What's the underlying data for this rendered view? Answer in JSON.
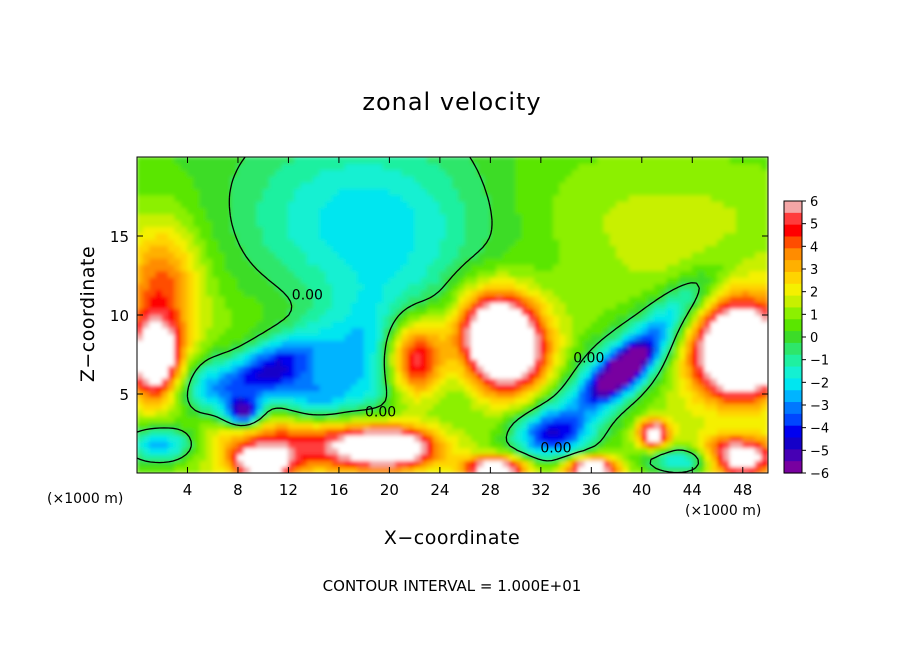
{
  "chart_data": {
    "type": "heatmap",
    "title": "zonal velocity",
    "xlabel": "X−coordinate",
    "ylabel": "Z−coordinate",
    "x_unit": "(×1000 m)",
    "x_ticks": [
      4,
      8,
      12,
      16,
      20,
      24,
      28,
      32,
      36,
      40,
      44,
      48
    ],
    "y_ticks": [
      5,
      10,
      15
    ],
    "xlim": [
      0,
      50
    ],
    "ylim": [
      0,
      20
    ],
    "colorbar": {
      "ticks": [
        "6",
        "5",
        "4",
        "3",
        "2",
        "1",
        "0",
        "−1",
        "−2",
        "−3",
        "−4",
        "−5",
        "−6"
      ],
      "levels": [
        {
          "min": 5.5,
          "color": "#f4a6a6"
        },
        {
          "min": 5,
          "color": "#ff3c3c"
        },
        {
          "min": 4.5,
          "color": "#ff0000"
        },
        {
          "min": 4,
          "color": "#ff4d00"
        },
        {
          "min": 3.5,
          "color": "#ff8c00"
        },
        {
          "min": 3,
          "color": "#ffb000"
        },
        {
          "min": 2.5,
          "color": "#ffd400"
        },
        {
          "min": 2,
          "color": "#f5f000"
        },
        {
          "min": 1.5,
          "color": "#c8f000"
        },
        {
          "min": 1,
          "color": "#8cf000"
        },
        {
          "min": 0.5,
          "color": "#5ae600"
        },
        {
          "min": 0,
          "color": "#3cdc28"
        },
        {
          "min": -0.5,
          "color": "#2ee66a"
        },
        {
          "min": -1,
          "color": "#1ff0a0"
        },
        {
          "min": -1.5,
          "color": "#14f0d2"
        },
        {
          "min": -2,
          "color": "#00e6f0"
        },
        {
          "min": -2.5,
          "color": "#00b4ff"
        },
        {
          "min": -3,
          "color": "#0078ff"
        },
        {
          "min": -3.5,
          "color": "#0046ff"
        },
        {
          "min": -4,
          "color": "#0000f0"
        },
        {
          "min": -4.5,
          "color": "#1400c8"
        },
        {
          "min": -5,
          "color": "#4600b4"
        },
        {
          "min": -99,
          "color": "#7800a0"
        }
      ],
      "saturated_color": "#ffffff"
    },
    "contour_labels": [
      {
        "text": "0.00",
        "x": 13.5,
        "y": 11.3
      },
      {
        "text": "0.00",
        "x": 19.3,
        "y": 3.9
      },
      {
        "text": "0.00",
        "x": 35.8,
        "y": 7.3
      },
      {
        "text": "0.00",
        "x": 33.2,
        "y": 1.6
      }
    ],
    "features": [
      {
        "x": 18,
        "y": 16.5,
        "v": -2.2,
        "rx": 10,
        "ry": 5
      },
      {
        "x": 22,
        "y": 12.5,
        "v": -1.2,
        "rx": 14,
        "ry": 5
      },
      {
        "x": 40,
        "y": 16,
        "v": 0.9,
        "rx": 14,
        "ry": 5
      },
      {
        "x": 2,
        "y": 12,
        "v": 3.2,
        "rx": 3,
        "ry": 4
      },
      {
        "x": 1.5,
        "y": 7.2,
        "v": 7,
        "rx": 2,
        "ry": 2.4
      },
      {
        "x": 10.5,
        "y": 6.5,
        "v": -5,
        "rx": 4.2,
        "ry": 1.8,
        "angle": 20
      },
      {
        "x": 8.5,
        "y": 3.8,
        "v": -5.5,
        "rx": 1.4,
        "ry": 0.9
      },
      {
        "x": 5.5,
        "y": 5.5,
        "v": -2.5,
        "rx": 3,
        "ry": 2
      },
      {
        "x": 14,
        "y": 4.5,
        "v": -3,
        "rx": 3,
        "ry": 1.8
      },
      {
        "x": 22,
        "y": 7.2,
        "v": 8,
        "rx": 2.6,
        "ry": 2.8
      },
      {
        "x": 20.5,
        "y": 7,
        "v": -4.5,
        "rx": 5.5,
        "ry": 4
      },
      {
        "x": 29,
        "y": 8.3,
        "v": 7,
        "rx": 3,
        "ry": 2.6,
        "angle": -25
      },
      {
        "x": 28.5,
        "y": 8.5,
        "v": 4,
        "rx": 4,
        "ry": 3.3,
        "angle": -25
      },
      {
        "x": 38.5,
        "y": 6.5,
        "v": -6,
        "rx": 2.8,
        "ry": 1.1,
        "angle": 33
      },
      {
        "x": 37.5,
        "y": 6,
        "v": -3.2,
        "rx": 9,
        "ry": 2.5,
        "angle": 33
      },
      {
        "x": 48,
        "y": 7.5,
        "v": 7,
        "rx": 3,
        "ry": 2.5
      },
      {
        "x": 47,
        "y": 8.5,
        "v": 4,
        "rx": 4.5,
        "ry": 3.5
      },
      {
        "x": 20,
        "y": 1.6,
        "v": 7,
        "rx": 3.5,
        "ry": 1.2
      },
      {
        "x": 10,
        "y": 0.7,
        "v": 7,
        "rx": 2,
        "ry": 0.9
      },
      {
        "x": 14,
        "y": 2,
        "v": 4,
        "rx": 8,
        "ry": 1.8
      },
      {
        "x": 2,
        "y": 1.8,
        "v": -4,
        "rx": 3,
        "ry": 1.2
      },
      {
        "x": 28.5,
        "y": 0.3,
        "v": 7,
        "rx": 2.5,
        "ry": 0.8
      },
      {
        "x": 36,
        "y": 0.3,
        "v": 7,
        "rx": 2,
        "ry": 0.7
      },
      {
        "x": 33,
        "y": 2.5,
        "v": -3.5,
        "rx": 3,
        "ry": 1.5
      },
      {
        "x": 41,
        "y": 2.5,
        "v": 6,
        "rx": 1.2,
        "ry": 0.9
      },
      {
        "x": 47.5,
        "y": 1,
        "v": 7,
        "rx": 3,
        "ry": 1.2
      },
      {
        "x": 44,
        "y": 0.8,
        "v": -4,
        "rx": 3.5,
        "ry": 0.9
      },
      {
        "x": 43,
        "y": 10.5,
        "v": -2.5,
        "rx": 4,
        "ry": 1.5,
        "angle": 35
      }
    ]
  },
  "footer": {
    "contour_interval": "CONTOUR INTERVAL = 1.000E+01"
  }
}
